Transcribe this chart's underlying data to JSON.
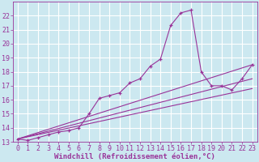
{
  "bg_color": "#cce8f0",
  "grid_color": "#ffffff",
  "line_color": "#993399",
  "xlabel": "Windchill (Refroidissement éolien,°C)",
  "xlabel_fontsize": 6.5,
  "tick_fontsize": 6,
  "xlim": [
    -0.5,
    23.5
  ],
  "ylim": [
    13,
    23
  ],
  "xticks": [
    0,
    1,
    2,
    3,
    4,
    5,
    6,
    7,
    8,
    9,
    10,
    11,
    12,
    13,
    14,
    15,
    16,
    17,
    18,
    19,
    20,
    21,
    22,
    23
  ],
  "yticks": [
    13,
    14,
    15,
    16,
    17,
    18,
    19,
    20,
    21,
    22
  ],
  "series1_x": [
    0,
    1,
    2,
    3,
    4,
    5,
    6,
    7,
    8,
    9,
    10,
    11,
    12,
    13,
    14,
    15,
    16,
    17,
    18,
    19,
    20,
    21,
    22,
    23
  ],
  "series1_y": [
    13.2,
    13.1,
    13.3,
    13.5,
    13.7,
    13.8,
    14.0,
    15.0,
    16.1,
    16.3,
    16.5,
    17.2,
    17.5,
    18.4,
    18.9,
    21.3,
    22.2,
    22.4,
    18.0,
    17.0,
    17.0,
    16.7,
    17.5,
    18.5
  ],
  "series2_x": [
    0,
    23
  ],
  "series2_y": [
    13.2,
    18.5
  ],
  "series3_x": [
    0,
    23
  ],
  "series3_y": [
    13.2,
    17.5
  ],
  "series4_x": [
    0,
    23
  ],
  "series4_y": [
    13.2,
    16.8
  ]
}
